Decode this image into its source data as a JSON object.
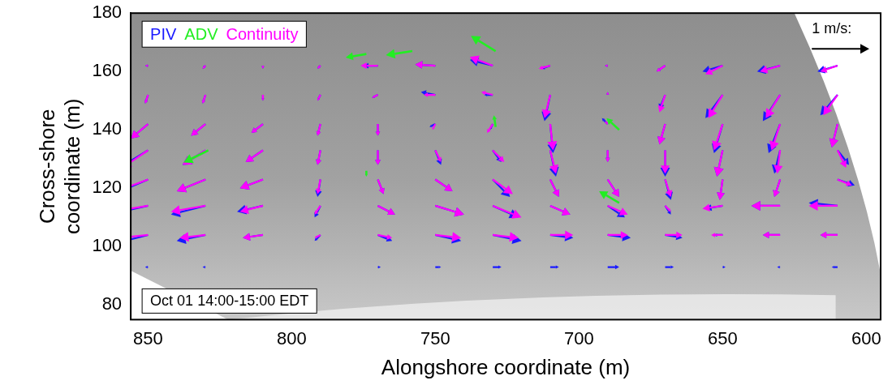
{
  "chart_data": {
    "type": "quiver",
    "x_label": "Alongshore coordinate (m)",
    "y_label": [
      "Cross-shore",
      "coordinate (m)"
    ],
    "xlim": [
      856,
      595
    ],
    "xticks": [
      850,
      800,
      750,
      700,
      650,
      600
    ],
    "ylim": [
      75,
      180
    ],
    "yticks": [
      80,
      100,
      120,
      140,
      160,
      180
    ],
    "grid": false,
    "legend": "upper left",
    "annotation": "Oct 01 14:00-15:00 EDT",
    "reference_arrow": {
      "label": "1 m/s:",
      "value": 1
    },
    "x": [
      850,
      830,
      810,
      790,
      770,
      750,
      730,
      710,
      690,
      670,
      650,
      630,
      610
    ],
    "y": [
      162,
      152,
      142,
      133,
      123,
      114,
      104,
      93
    ],
    "series": [
      {
        "name": "PIV",
        "color": "#1a1aff",
        "u": [
          [
            0.05,
            0.05,
            0.0,
            0.05,
            0.25,
            0.35,
            0.4,
            0.15,
            0.05,
            0.15,
            0.35,
            0.4,
            0.35
          ],
          [
            0.05,
            0.05,
            0.0,
            0.05,
            0.1,
            0.25,
            0.15,
            0.1,
            0.0,
            0.1,
            0.3,
            0.3,
            0.3
          ],
          [
            0.3,
            0.25,
            0.2,
            0.05,
            0.0,
            0.1,
            0.05,
            -0.05,
            0.1,
            0.1,
            0.15,
            0.2,
            0.1
          ],
          [
            0.5,
            0.4,
            0.3,
            0.05,
            0.0,
            -0.1,
            -0.15,
            -0.1,
            0.0,
            0.0,
            0.1,
            0.1,
            -0.2
          ],
          [
            0.6,
            0.5,
            0.4,
            0.05,
            -0.1,
            -0.3,
            -0.3,
            -0.15,
            -0.2,
            -0.1,
            0.05,
            0.1,
            -0.3
          ],
          [
            0.7,
            0.6,
            0.45,
            0.1,
            -0.3,
            -0.5,
            -0.45,
            -0.35,
            -0.3,
            -0.1,
            0.3,
            0.5,
            0.5
          ],
          [
            0.6,
            0.5,
            0.35,
            0.1,
            -0.25,
            -0.45,
            -0.5,
            -0.4,
            -0.4,
            -0.3,
            0.15,
            0.3,
            0.3
          ],
          [
            0.05,
            0.05,
            0.0,
            0.0,
            -0.05,
            -0.1,
            -0.15,
            -0.15,
            -0.2,
            -0.15,
            -0.05,
            0.05,
            0.1
          ]
        ],
        "v": [
          [
            0.0,
            -0.05,
            -0.05,
            -0.05,
            0.0,
            0.02,
            0.1,
            -0.05,
            0.0,
            -0.1,
            -0.1,
            -0.1,
            -0.1
          ],
          [
            -0.15,
            -0.15,
            -0.1,
            -0.1,
            -0.05,
            0.05,
            0.0,
            -0.45,
            0.05,
            -0.25,
            -0.4,
            -0.45,
            -0.35
          ],
          [
            -0.25,
            -0.2,
            -0.15,
            -0.2,
            -0.2,
            -0.05,
            -0.1,
            -0.5,
            0.1,
            -0.35,
            -0.5,
            -0.5,
            -0.4
          ],
          [
            -0.3,
            -0.25,
            -0.2,
            -0.25,
            -0.25,
            -0.25,
            -0.2,
            -0.45,
            -0.2,
            -0.45,
            -0.45,
            -0.4,
            -0.25
          ],
          [
            -0.25,
            -0.2,
            -0.15,
            -0.3,
            -0.25,
            -0.2,
            -0.3,
            -0.3,
            -0.3,
            -0.35,
            -0.35,
            -0.3,
            -0.1
          ],
          [
            -0.15,
            -0.15,
            -0.1,
            -0.2,
            -0.15,
            -0.15,
            -0.2,
            -0.15,
            -0.2,
            -0.15,
            -0.05,
            0.0,
            0.05
          ],
          [
            -0.15,
            -0.1,
            -0.05,
            -0.1,
            -0.1,
            -0.1,
            -0.1,
            -0.05,
            -0.05,
            -0.05,
            0.0,
            0.0,
            0.0
          ],
          [
            0.0,
            0.0,
            0.0,
            0.0,
            0.0,
            0.0,
            0.0,
            0.0,
            0.0,
            0.0,
            0.0,
            0.0,
            0.0
          ]
        ]
      },
      {
        "name": "ADV",
        "color": "#22ee22",
        "x": [
          829,
          774,
          758,
          729,
          729,
          774,
          686,
          686
        ],
        "y": [
          133,
          166,
          167,
          167,
          141,
          126,
          140,
          115
        ],
        "u": [
          0.43,
          0.36,
          0.46,
          0.43,
          0.03,
          0.0,
          0.22,
          0.35
        ],
        "v": [
          -0.21,
          -0.06,
          -0.07,
          0.26,
          0.2,
          -0.1,
          0.2,
          0.2
        ]
      },
      {
        "name": "Continuity",
        "color": "#ff00ff",
        "u": [
          [
            0.05,
            0.05,
            0.0,
            0.05,
            0.3,
            0.35,
            0.4,
            0.2,
            0.05,
            0.15,
            0.3,
            0.35,
            0.3
          ],
          [
            0.05,
            0.05,
            0.0,
            0.05,
            0.1,
            0.2,
            0.2,
            0.1,
            0.0,
            0.1,
            0.25,
            0.25,
            0.25
          ],
          [
            0.3,
            0.25,
            0.2,
            0.05,
            0.0,
            0.05,
            0.1,
            -0.05,
            0.05,
            0.1,
            0.15,
            0.15,
            0.1
          ],
          [
            0.45,
            0.4,
            0.3,
            0.05,
            0.0,
            -0.1,
            -0.2,
            -0.1,
            0.0,
            0.0,
            0.1,
            0.05,
            -0.15
          ],
          [
            0.55,
            0.5,
            0.4,
            0.05,
            -0.1,
            -0.3,
            -0.35,
            -0.15,
            -0.2,
            -0.1,
            0.05,
            0.1,
            -0.25
          ],
          [
            0.65,
            0.6,
            0.4,
            0.1,
            -0.3,
            -0.5,
            -0.5,
            -0.35,
            -0.35,
            -0.1,
            0.35,
            0.5,
            0.5
          ],
          [
            0.5,
            0.45,
            0.35,
            0.1,
            -0.25,
            -0.45,
            -0.45,
            -0.4,
            -0.35,
            -0.3,
            0.2,
            0.3,
            0.3
          ],
          null
        ],
        "v": [
          [
            0.0,
            -0.05,
            -0.05,
            -0.05,
            0.0,
            0.02,
            0.15,
            -0.05,
            0.0,
            -0.1,
            -0.15,
            -0.1,
            -0.1
          ],
          [
            -0.15,
            -0.15,
            -0.1,
            -0.1,
            -0.05,
            0.0,
            0.05,
            -0.4,
            0.05,
            -0.3,
            -0.4,
            -0.4,
            -0.35
          ],
          [
            -0.25,
            -0.2,
            -0.15,
            -0.2,
            -0.2,
            -0.1,
            -0.15,
            -0.45,
            0.05,
            -0.35,
            -0.45,
            -0.45,
            -0.4
          ],
          [
            -0.3,
            -0.25,
            -0.2,
            -0.25,
            -0.25,
            -0.2,
            -0.2,
            -0.4,
            -0.2,
            -0.4,
            -0.45,
            -0.4,
            -0.3
          ],
          [
            -0.2,
            -0.2,
            -0.15,
            -0.25,
            -0.25,
            -0.2,
            -0.25,
            -0.3,
            -0.3,
            -0.3,
            -0.35,
            -0.3,
            -0.1
          ],
          [
            -0.1,
            -0.1,
            -0.1,
            -0.15,
            -0.15,
            -0.15,
            -0.2,
            -0.15,
            -0.15,
            -0.1,
            -0.05,
            0.0,
            0.0
          ],
          [
            -0.05,
            -0.05,
            -0.05,
            -0.05,
            -0.05,
            -0.05,
            -0.05,
            0.0,
            0.0,
            0.0,
            0.0,
            0.0,
            0.0
          ],
          null
        ]
      }
    ]
  }
}
